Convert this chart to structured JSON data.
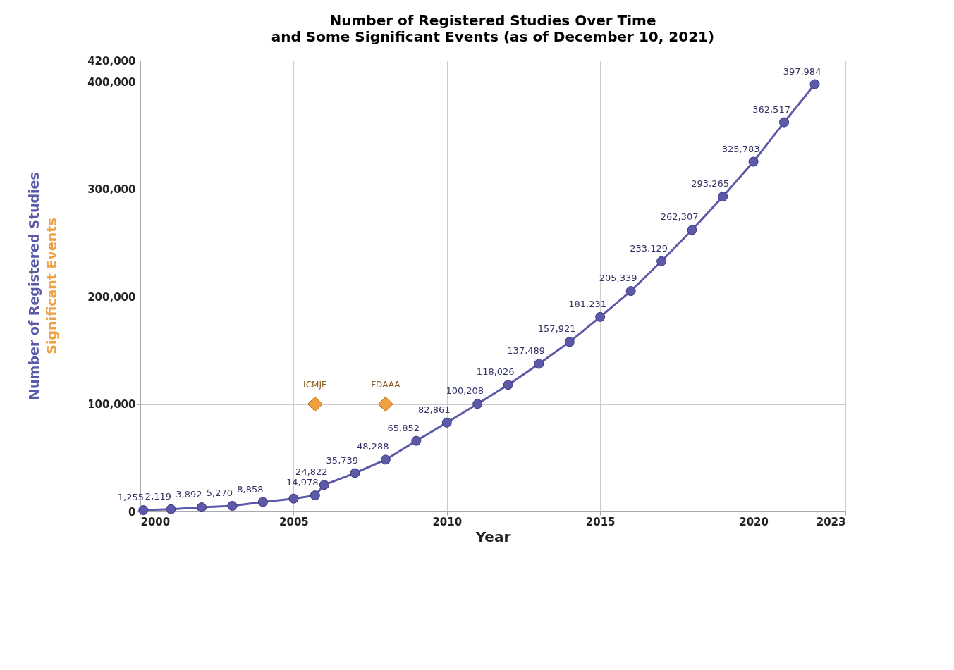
{
  "chart_data": {
    "type": "line",
    "title": "Number of Registered Studies Over Time",
    "subtitle": "and Some Significant Events (as of December 10, 2021)",
    "xlabel": "Year",
    "ylabel": "Number of Registered Studies",
    "xlim": [
      2000,
      2023
    ],
    "xticks": [
      2000,
      2005,
      2010,
      2015,
      2020,
      2023
    ],
    "ylim": [
      0,
      420000
    ],
    "yticks": [
      {
        "value": 0,
        "label": "0"
      },
      {
        "value": 100000,
        "label": "100,000"
      },
      {
        "value": 200000,
        "label": "200,000"
      },
      {
        "value": 300000,
        "label": "300,000"
      },
      {
        "value": 400000,
        "label": "400,000"
      },
      {
        "value": 420000,
        "label": "420,000"
      }
    ],
    "grid": true,
    "legend": false,
    "marker": "circle",
    "line_style": "solid",
    "series": [
      {
        "color": "#5d59a9",
        "x": [
          2000.1,
          2001,
          2002,
          2003,
          2004,
          2005,
          2005.7,
          2006,
          2007,
          2008,
          2009,
          2010,
          2011,
          2012,
          2013,
          2014,
          2015,
          2016,
          2017,
          2018,
          2019,
          2020,
          2021,
          2022
        ],
        "values": [
          1255,
          2119,
          3892,
          5270,
          8858,
          12000,
          14978,
          24822,
          35739,
          48288,
          65852,
          82861,
          100208,
          118026,
          137489,
          157921,
          181231,
          205339,
          233129,
          262307,
          293265,
          325783,
          362517,
          397984
        ],
        "value_labels": [
          "1,255",
          "2,119",
          "3,892",
          "5,270",
          "8,858",
          null,
          "14,978",
          "24,822",
          "35,739",
          "48,288",
          "65,852",
          "82,861",
          "100,208",
          "118,026",
          "137,489",
          "157,921",
          "181,231",
          "205,339",
          "233,129",
          "262,307",
          "293,265",
          "325,783",
          "362,517",
          "397,984"
        ]
      },
      {
        "name": "Significant Events",
        "color": "#f0a040",
        "type": "scatter",
        "marker": "diamond",
        "x": [
          2005.7,
          2008
        ],
        "values": [
          100000,
          100000
        ]
      }
    ],
    "annotations": [
      {
        "text": "ICMJE",
        "x": 2005.7,
        "y": 100000
      },
      {
        "text": "FDAAA",
        "x": 2008,
        "y": 100000
      }
    ]
  }
}
